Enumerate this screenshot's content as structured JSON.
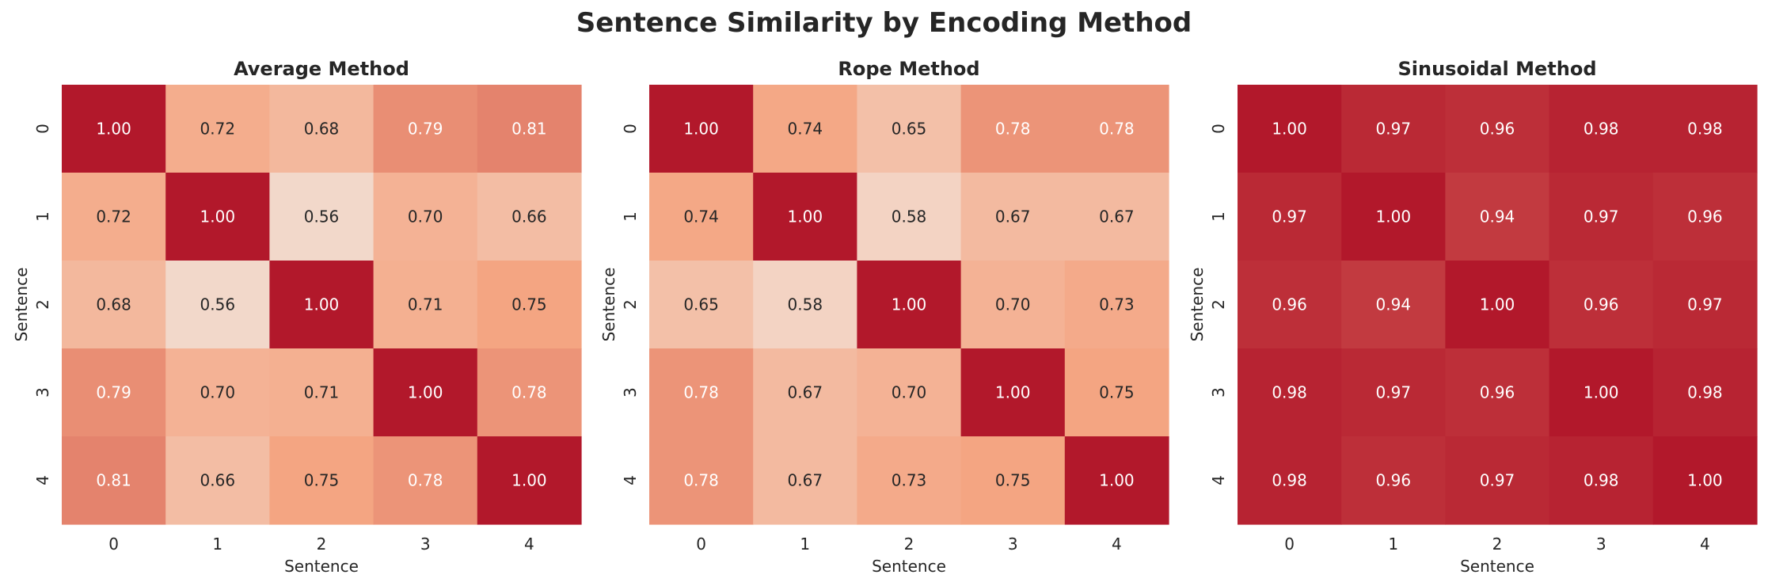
{
  "figure": {
    "title": "Sentence Similarity by Encoding Method"
  },
  "colors": {
    "text_dark": "#262626",
    "text_light": "#ffffff",
    "colormap_low": "#f2e8e1",
    "colormap_mid": "#f4a582",
    "colormap_high": "#b2182b"
  },
  "chart_data": [
    {
      "type": "heatmap",
      "title": "Average Method",
      "xlabel": "Sentence",
      "ylabel": "Sentence",
      "x_ticks": [
        "0",
        "1",
        "2",
        "3",
        "4"
      ],
      "y_ticks": [
        "0",
        "1",
        "2",
        "3",
        "4"
      ],
      "value_range": [
        0.5,
        1.0
      ],
      "matrix": [
        [
          1.0,
          0.72,
          0.68,
          0.79,
          0.81
        ],
        [
          0.72,
          1.0,
          0.56,
          0.7,
          0.66
        ],
        [
          0.68,
          0.56,
          1.0,
          0.71,
          0.75
        ],
        [
          0.79,
          0.7,
          0.71,
          1.0,
          0.78
        ],
        [
          0.81,
          0.66,
          0.75,
          0.78,
          1.0
        ]
      ],
      "grid": false,
      "colorbar": false
    },
    {
      "type": "heatmap",
      "title": "Rope Method",
      "xlabel": "Sentence",
      "ylabel": "Sentence",
      "x_ticks": [
        "0",
        "1",
        "2",
        "3",
        "4"
      ],
      "y_ticks": [
        "0",
        "1",
        "2",
        "3",
        "4"
      ],
      "value_range": [
        0.5,
        1.0
      ],
      "matrix": [
        [
          1.0,
          0.74,
          0.65,
          0.78,
          0.78
        ],
        [
          0.74,
          1.0,
          0.58,
          0.67,
          0.67
        ],
        [
          0.65,
          0.58,
          1.0,
          0.7,
          0.73
        ],
        [
          0.78,
          0.67,
          0.7,
          1.0,
          0.75
        ],
        [
          0.78,
          0.67,
          0.73,
          0.75,
          1.0
        ]
      ],
      "grid": false,
      "colorbar": false
    },
    {
      "type": "heatmap",
      "title": "Sinusoidal Method",
      "xlabel": "Sentence",
      "ylabel": "Sentence",
      "x_ticks": [
        "0",
        "1",
        "2",
        "3",
        "4"
      ],
      "y_ticks": [
        "0",
        "1",
        "2",
        "3",
        "4"
      ],
      "value_range": [
        0.5,
        1.0
      ],
      "matrix": [
        [
          1.0,
          0.97,
          0.96,
          0.98,
          0.98
        ],
        [
          0.97,
          1.0,
          0.94,
          0.97,
          0.96
        ],
        [
          0.96,
          0.94,
          1.0,
          0.96,
          0.97
        ],
        [
          0.98,
          0.97,
          0.96,
          1.0,
          0.98
        ],
        [
          0.98,
          0.96,
          0.97,
          0.98,
          1.0
        ]
      ],
      "grid": false,
      "colorbar": false
    }
  ]
}
